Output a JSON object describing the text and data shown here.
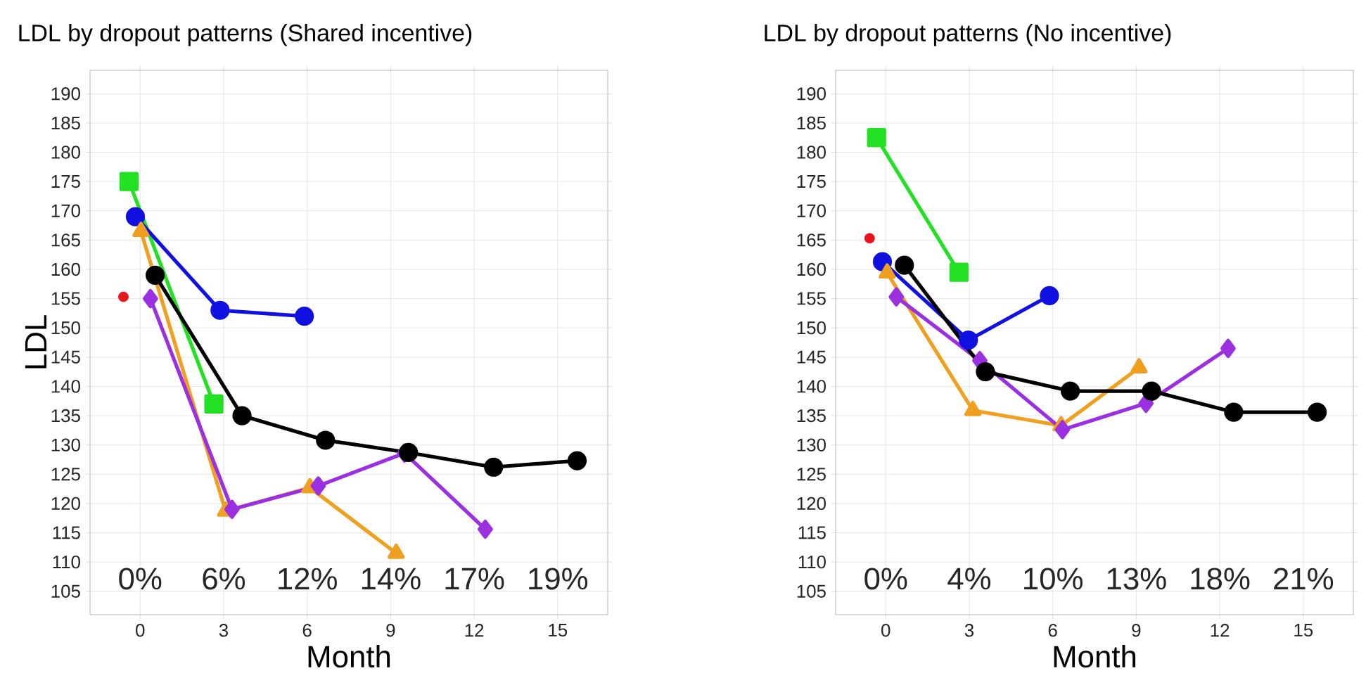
{
  "chart_data": [
    {
      "type": "line",
      "title": "LDL by dropout patterns (Shared incentive)",
      "xlabel": "Month",
      "ylabel": "LDL",
      "xlim": [
        -1.8,
        16.8
      ],
      "ylim": [
        101,
        194
      ],
      "xticks": [
        0,
        3,
        6,
        9,
        12,
        15
      ],
      "yticks": [
        105,
        110,
        115,
        120,
        125,
        130,
        135,
        140,
        145,
        150,
        155,
        160,
        165,
        170,
        175,
        180,
        185,
        190
      ],
      "grid": true,
      "line_style": "solid",
      "series": [
        {
          "type": "scatter",
          "marker": "circle",
          "color": "#e8141c",
          "x": [
            -0.6
          ],
          "values": [
            155.3
          ]
        },
        {
          "marker": "square",
          "color": "#22e022",
          "x": [
            -0.4,
            2.65
          ],
          "values": [
            175,
            137
          ]
        },
        {
          "marker": "circle",
          "color": "#1010e0",
          "x": [
            -0.17,
            2.87,
            5.9
          ],
          "values": [
            169,
            153,
            152
          ]
        },
        {
          "marker": "triangle",
          "color": "#f0a020",
          "x": [
            0.03,
            3.07,
            6.1,
            9.2
          ],
          "values": [
            166.5,
            118.7,
            122.7,
            111.5
          ]
        },
        {
          "marker": "diamond",
          "color": "#9a30e0",
          "x": [
            0.37,
            3.3,
            6.4,
            9.5,
            12.4
          ],
          "values": [
            155,
            119,
            123,
            128.6,
            115.6
          ]
        },
        {
          "marker": "circle",
          "color": "#000000",
          "x": [
            0.54,
            3.66,
            6.66,
            9.64,
            12.7,
            15.7
          ],
          "values": [
            159,
            135,
            130.8,
            128.7,
            126.2,
            127.3
          ]
        }
      ],
      "annotations": [
        "0%",
        "6%",
        "12%",
        "14%",
        "17%",
        "19%"
      ]
    },
    {
      "type": "line",
      "title": "LDL by dropout patterns (No incentive)",
      "xlabel": "Month",
      "xlim": [
        -1.8,
        16.8
      ],
      "ylim": [
        101,
        194
      ],
      "xticks": [
        0,
        3,
        6,
        9,
        12,
        15
      ],
      "yticks": [
        105,
        110,
        115,
        120,
        125,
        130,
        135,
        140,
        145,
        150,
        155,
        160,
        165,
        170,
        175,
        180,
        185,
        190
      ],
      "grid": true,
      "line_style": "solid",
      "series": [
        {
          "type": "scatter",
          "marker": "circle",
          "color": "#e8141c",
          "x": [
            -0.58
          ],
          "values": [
            165.3
          ]
        },
        {
          "marker": "square",
          "color": "#22e022",
          "x": [
            -0.33,
            2.63
          ],
          "values": [
            182.5,
            159.5
          ]
        },
        {
          "marker": "circle",
          "color": "#1010e0",
          "x": [
            -0.12,
            2.97,
            5.88
          ],
          "values": [
            161.3,
            147.9,
            155.5
          ]
        },
        {
          "marker": "triangle",
          "color": "#f0a020",
          "x": [
            0.05,
            3.13,
            6.3,
            9.1
          ],
          "values": [
            159.4,
            135.9,
            133.3,
            143.2
          ]
        },
        {
          "marker": "diamond",
          "color": "#9a30e0",
          "x": [
            0.38,
            3.38,
            6.35,
            9.35,
            12.3
          ],
          "values": [
            155.3,
            144.4,
            132.6,
            137.1,
            146.5
          ]
        },
        {
          "marker": "circle",
          "color": "#000000",
          "x": [
            0.67,
            3.58,
            6.63,
            9.55,
            12.5,
            15.5
          ],
          "values": [
            160.7,
            142.5,
            139.2,
            139.2,
            135.6,
            135.6
          ]
        }
      ],
      "annotations": [
        "0%",
        "4%",
        "10%",
        "13%",
        "18%",
        "21%"
      ]
    }
  ]
}
